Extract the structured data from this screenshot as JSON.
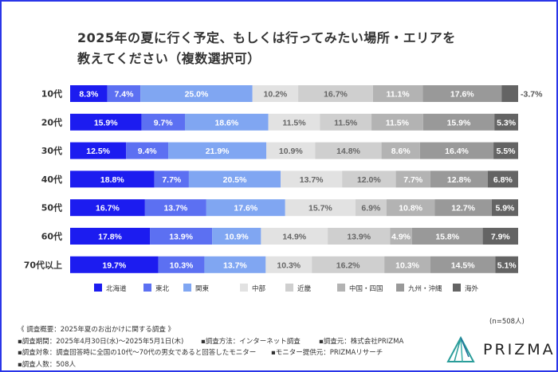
{
  "title_lines": [
    "2025年の夏に行く予定、もしくは行ってみたい場所・エリアを",
    "教えてください（複数選択可）"
  ],
  "chart_data": {
    "type": "bar",
    "orientation": "horizontal",
    "stacked": "100%",
    "categories": [
      "10代",
      "20代",
      "30代",
      "40代",
      "50代",
      "60代",
      "70代以上"
    ],
    "series": [
      {
        "name": "北海道",
        "color": "#1c1cf0",
        "values": [
          8.3,
          15.9,
          12.5,
          18.8,
          16.7,
          17.8,
          19.7
        ]
      },
      {
        "name": "東北",
        "color": "#5c70f2",
        "values": [
          7.4,
          9.7,
          9.4,
          7.7,
          13.7,
          13.9,
          10.3
        ]
      },
      {
        "name": "関東",
        "color": "#80a6f2",
        "values": [
          25.0,
          18.6,
          21.9,
          20.5,
          17.6,
          10.9,
          13.7
        ]
      },
      {
        "name": "中部",
        "color": "#e2e2e2",
        "values": [
          10.2,
          11.5,
          10.9,
          13.7,
          15.7,
          14.9,
          10.3
        ]
      },
      {
        "name": "近畿",
        "color": "#cfcfcf",
        "values": [
          16.7,
          11.5,
          14.8,
          12.0,
          6.9,
          13.9,
          16.2
        ]
      },
      {
        "name": "中国・四国",
        "color": "#b3b3b3",
        "values": [
          11.1,
          11.5,
          8.6,
          7.7,
          10.8,
          4.9,
          10.3
        ]
      },
      {
        "name": "九州・沖縄",
        "color": "#999999",
        "values": [
          17.6,
          15.9,
          16.4,
          12.8,
          12.7,
          15.8,
          14.5
        ]
      },
      {
        "name": "海外",
        "color": "#646464",
        "values": [
          3.7,
          5.3,
          5.5,
          6.8,
          5.9,
          7.9,
          5.1
        ]
      }
    ],
    "value_suffix": "%",
    "legend_position": "bottom",
    "grid": false
  },
  "sample_note": "(n=508人)",
  "notes": {
    "heading": "《 調査概要：2025年夏のお出かけに関する調査 》",
    "period": "▪調査期間：2025年4月30日(水)〜2025年5月1日(木)",
    "method": "▪調査方法：インターネット調査",
    "source": "▪調査元：株式会社PRIZMA",
    "target": "▪調査対象：調査回答時に全国の10代〜70代の男女であると回答したモニター",
    "provider": "▪モニター提供元：PRIZMAリサーチ",
    "count": "▪調査人数：508人"
  },
  "logo": {
    "text": "PRIZMA"
  }
}
